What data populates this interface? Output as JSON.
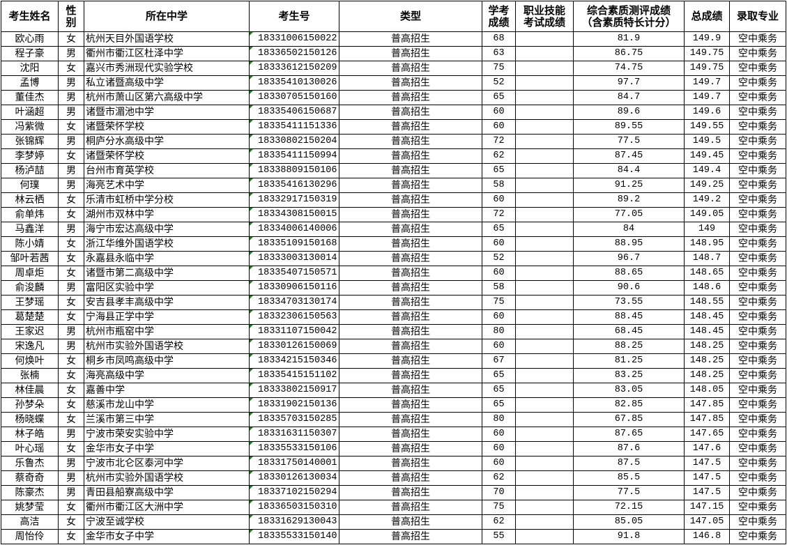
{
  "headers": {
    "name": "考生姓名",
    "gender": "性别",
    "school": "所在中学",
    "id": "考生号",
    "type": "类型",
    "xk": "学考成绩",
    "zyjn": "职业技能考试成绩",
    "zhsz": "综合素质测评成绩（含素质特长计分）",
    "total": "总成绩",
    "major": "录取专业"
  },
  "colors": {
    "text_number_indicator": "#1f7a1f",
    "border": "#000000"
  },
  "rows": [
    {
      "name": "欧心雨",
      "gender": "女",
      "school": "杭州天目外国语学校",
      "id": "18331006150022",
      "type": "普高招生",
      "xk": "68",
      "zyjn": "",
      "zhsz": "81.9",
      "total": "149.9",
      "major": "空中乘务"
    },
    {
      "name": "程子豪",
      "gender": "男",
      "school": "衢州市衢江区杜泽中学",
      "id": "18336502150126",
      "type": "普高招生",
      "xk": "63",
      "zyjn": "",
      "zhsz": "86.75",
      "total": "149.75",
      "major": "空中乘务"
    },
    {
      "name": "沈阳",
      "gender": "女",
      "school": "嘉兴市秀洲现代实验学校",
      "id": "18333612150209",
      "type": "普高招生",
      "xk": "75",
      "zyjn": "",
      "zhsz": "74.75",
      "total": "149.75",
      "major": "空中乘务"
    },
    {
      "name": "孟博",
      "gender": "男",
      "school": "私立诸暨高级中学",
      "id": "18335410130026",
      "type": "普高招生",
      "xk": "52",
      "zyjn": "",
      "zhsz": "97.7",
      "total": "149.7",
      "major": "空中乘务"
    },
    {
      "name": "董佳杰",
      "gender": "男",
      "school": "杭州市萧山区第六高级中学",
      "id": "18330705150160",
      "type": "普高招生",
      "xk": "65",
      "zyjn": "",
      "zhsz": "84.7",
      "total": "149.7",
      "major": "空中乘务"
    },
    {
      "name": "叶涵超",
      "gender": "男",
      "school": "诸暨市湄池中学",
      "id": "18335406150687",
      "type": "普高招生",
      "xk": "60",
      "zyjn": "",
      "zhsz": "89.6",
      "total": "149.6",
      "major": "空中乘务"
    },
    {
      "name": "冯紫微",
      "gender": "女",
      "school": "诸暨荣怀学校",
      "id": "18335411151336",
      "type": "普高招生",
      "xk": "60",
      "zyjn": "",
      "zhsz": "89.55",
      "total": "149.55",
      "major": "空中乘务"
    },
    {
      "name": "张锦辉",
      "gender": "男",
      "school": "桐庐分水高级中学",
      "id": "18330802150204",
      "type": "普高招生",
      "xk": "72",
      "zyjn": "",
      "zhsz": "77.5",
      "total": "149.5",
      "major": "空中乘务"
    },
    {
      "name": "李梦婷",
      "gender": "女",
      "school": "诸暨荣怀学校",
      "id": "18335411150994",
      "type": "普高招生",
      "xk": "62",
      "zyjn": "",
      "zhsz": "87.45",
      "total": "149.45",
      "major": "空中乘务"
    },
    {
      "name": "杨泸喆",
      "gender": "男",
      "school": "台州市育英学校",
      "id": "18338809150106",
      "type": "普高招生",
      "xk": "65",
      "zyjn": "",
      "zhsz": "84.4",
      "total": "149.4",
      "major": "空中乘务"
    },
    {
      "name": "何璞",
      "gender": "男",
      "school": "海亮艺术中学",
      "id": "18335416130296",
      "type": "普高招生",
      "xk": "58",
      "zyjn": "",
      "zhsz": "91.25",
      "total": "149.25",
      "major": "空中乘务"
    },
    {
      "name": "林云栖",
      "gender": "女",
      "school": "乐清市虹桥中学分校",
      "id": "18332917150319",
      "type": "普高招生",
      "xk": "60",
      "zyjn": "",
      "zhsz": "89.2",
      "total": "149.2",
      "major": "空中乘务"
    },
    {
      "name": "俞单炜",
      "gender": "女",
      "school": "湖州市双林中学",
      "id": "18334308150015",
      "type": "普高招生",
      "xk": "72",
      "zyjn": "",
      "zhsz": "77.05",
      "total": "149.05",
      "major": "空中乘务"
    },
    {
      "name": "马鑫洋",
      "gender": "男",
      "school": "海宁市宏达高级中学",
      "id": "18334006140006",
      "type": "普高招生",
      "xk": "65",
      "zyjn": "",
      "zhsz": "84",
      "total": "149",
      "major": "空中乘务"
    },
    {
      "name": "陈小婧",
      "gender": "女",
      "school": "浙江华维外国语学校",
      "id": "18335109150168",
      "type": "普高招生",
      "xk": "60",
      "zyjn": "",
      "zhsz": "88.95",
      "total": "148.95",
      "major": "空中乘务"
    },
    {
      "name": "邹叶若茜",
      "gender": "女",
      "school": "永嘉县永临中学",
      "id": "18333003130014",
      "type": "普高招生",
      "xk": "52",
      "zyjn": "",
      "zhsz": "96.7",
      "total": "148.7",
      "major": "空中乘务"
    },
    {
      "name": "周卓炬",
      "gender": "女",
      "school": "诸暨市第二高级中学",
      "id": "18335407150571",
      "type": "普高招生",
      "xk": "60",
      "zyjn": "",
      "zhsz": "88.65",
      "total": "148.65",
      "major": "空中乘务"
    },
    {
      "name": "俞浚麟",
      "gender": "男",
      "school": "富阳区实验中学",
      "id": "18330906150116",
      "type": "普高招生",
      "xk": "58",
      "zyjn": "",
      "zhsz": "90.6",
      "total": "148.6",
      "major": "空中乘务"
    },
    {
      "name": "王梦瑶",
      "gender": "女",
      "school": "安吉县孝丰高级中学",
      "id": "18334703130174",
      "type": "普高招生",
      "xk": "75",
      "zyjn": "",
      "zhsz": "73.55",
      "total": "148.55",
      "major": "空中乘务"
    },
    {
      "name": "葛楚楚",
      "gender": "女",
      "school": "宁海县正学中学",
      "id": "18332306150563",
      "type": "普高招生",
      "xk": "60",
      "zyjn": "",
      "zhsz": "88.45",
      "total": "148.45",
      "major": "空中乘务"
    },
    {
      "name": "王家迟",
      "gender": "男",
      "school": "杭州市瓶窑中学",
      "id": "18331107150042",
      "type": "普高招生",
      "xk": "80",
      "zyjn": "",
      "zhsz": "68.45",
      "total": "148.45",
      "major": "空中乘务"
    },
    {
      "name": "宋逸凡",
      "gender": "男",
      "school": "杭州市实验外国语学校",
      "id": "18330126150069",
      "type": "普高招生",
      "xk": "60",
      "zyjn": "",
      "zhsz": "88.25",
      "total": "148.25",
      "major": "空中乘务"
    },
    {
      "name": "何焕叶",
      "gender": "女",
      "school": "桐乡市凤鸣高级中学",
      "id": "18334215150346",
      "type": "普高招生",
      "xk": "67",
      "zyjn": "",
      "zhsz": "81.25",
      "total": "148.25",
      "major": "空中乘务"
    },
    {
      "name": "张楠",
      "gender": "女",
      "school": "海亮高级中学",
      "id": "18335415151102",
      "type": "普高招生",
      "xk": "65",
      "zyjn": "",
      "zhsz": "83.25",
      "total": "148.25",
      "major": "空中乘务"
    },
    {
      "name": "林佳晨",
      "gender": "女",
      "school": "嘉善中学",
      "id": "18333802150917",
      "type": "普高招生",
      "xk": "65",
      "zyjn": "",
      "zhsz": "83.05",
      "total": "148.05",
      "major": "空中乘务"
    },
    {
      "name": "孙梦朵",
      "gender": "女",
      "school": "慈溪市龙山中学",
      "id": "18331902150136",
      "type": "普高招生",
      "xk": "65",
      "zyjn": "",
      "zhsz": "82.85",
      "total": "147.85",
      "major": "空中乘务"
    },
    {
      "name": "杨晓蝶",
      "gender": "女",
      "school": "兰溪市第三中学",
      "id": "18335703150285",
      "type": "普高招生",
      "xk": "80",
      "zyjn": "",
      "zhsz": "67.85",
      "total": "147.85",
      "major": "空中乘务"
    },
    {
      "name": "林子皓",
      "gender": "男",
      "school": "宁波市荣安实验中学",
      "id": "18331631150307",
      "type": "普高招生",
      "xk": "60",
      "zyjn": "",
      "zhsz": "87.65",
      "total": "147.65",
      "major": "空中乘务"
    },
    {
      "name": "叶心瑶",
      "gender": "女",
      "school": "金华市女子中学",
      "id": "18335533150106",
      "type": "普高招生",
      "xk": "60",
      "zyjn": "",
      "zhsz": "87.6",
      "total": "147.6",
      "major": "空中乘务"
    },
    {
      "name": "乐鲁杰",
      "gender": "男",
      "school": "宁波市北仑区泰河中学",
      "id": "18331750140001",
      "type": "普高招生",
      "xk": "60",
      "zyjn": "",
      "zhsz": "87.5",
      "total": "147.5",
      "major": "空中乘务"
    },
    {
      "name": "蔡奇奇",
      "gender": "男",
      "school": "杭州市实验外国语学校",
      "id": "18330126130034",
      "type": "普高招生",
      "xk": "62",
      "zyjn": "",
      "zhsz": "85.5",
      "total": "147.5",
      "major": "空中乘务"
    },
    {
      "name": "陈豪杰",
      "gender": "男",
      "school": "青田县船寮高级中学",
      "id": "18337102150294",
      "type": "普高招生",
      "xk": "70",
      "zyjn": "",
      "zhsz": "77.5",
      "total": "147.5",
      "major": "空中乘务"
    },
    {
      "name": "姚梦莹",
      "gender": "女",
      "school": "衢州市衢江区大洲中学",
      "id": "18336503150310",
      "type": "普高招生",
      "xk": "75",
      "zyjn": "",
      "zhsz": "72.15",
      "total": "147.15",
      "major": "空中乘务"
    },
    {
      "name": "高洁",
      "gender": "女",
      "school": "宁波至诚学校",
      "id": "18331629130043",
      "type": "普高招生",
      "xk": "62",
      "zyjn": "",
      "zhsz": "85.05",
      "total": "147.05",
      "major": "空中乘务"
    },
    {
      "name": "周怡伶",
      "gender": "女",
      "school": "金华市女子中学",
      "id": "18335533150140",
      "type": "普高招生",
      "xk": "55",
      "zyjn": "",
      "zhsz": "91.8",
      "total": "146.8",
      "major": "空中乘务"
    }
  ]
}
